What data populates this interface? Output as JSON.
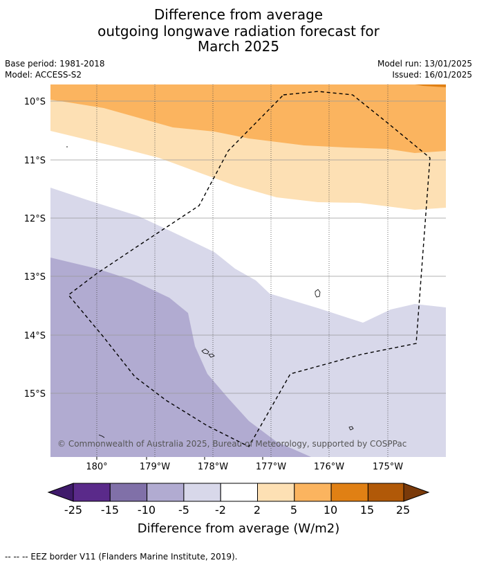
{
  "title": {
    "line1": "Difference from average",
    "line2": "outgoing longwave radiation forecast for",
    "line3": "March 2025"
  },
  "meta": {
    "base_period": "Base period: 1981-2018",
    "model": "Model: ACCESS-S2",
    "model_run": "Model run: 13/01/2025",
    "issued": "Issued: 16/01/2025"
  },
  "map": {
    "lat_labels": [
      "10°S",
      "11°S",
      "12°S",
      "13°S",
      "14°S",
      "15°S"
    ],
    "lon_labels": [
      "180°",
      "179°W",
      "178°W",
      "177°W",
      "176°W",
      "175°W"
    ],
    "copyright": "© Commonwealth of Australia 2025, Bureau of Meteorology, supported by COSPPac"
  },
  "colorbar": {
    "ticks": [
      "-25",
      "-15",
      "-10",
      "-5",
      "-2",
      "2",
      "5",
      "10",
      "15",
      "25"
    ],
    "colors": [
      "#3f1a6b",
      "#5a2a8a",
      "#8070a8",
      "#b1abd1",
      "#d8d8ea",
      "#ffffff",
      "#fde0b4",
      "#fbb45f",
      "#e08014",
      "#b15908",
      "#7a3a0a"
    ],
    "label": "Difference from average (W/m2)"
  },
  "footer": "--  --  -- EEZ border V11 (Flanders Marine Institute, 2019)."
}
